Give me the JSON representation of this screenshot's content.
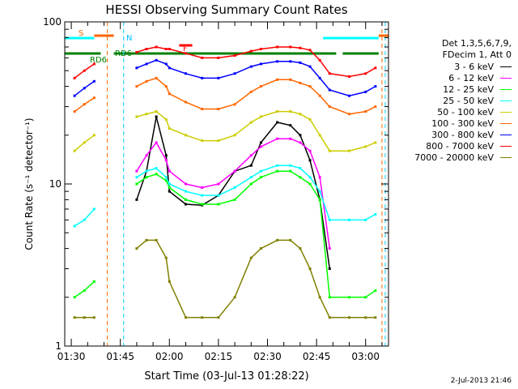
{
  "chart_data": {
    "type": "line",
    "title": "HESSI Observing Summary Count Rates",
    "xlabel": "Start Time (03-Jul-13 01:28:22)",
    "ylabel": "Count Rate (s⁻¹ detector⁻¹)",
    "y_scale": "log",
    "ylim": [
      1,
      100
    ],
    "xlim": [
      "01:28",
      "03:07"
    ],
    "x_ticks": [
      "01:30",
      "01:45",
      "02:00",
      "02:15",
      "02:30",
      "02:45",
      "03:00"
    ],
    "y_ticks": [
      "1",
      "10",
      "100"
    ],
    "grid": false,
    "legend_placement": "right",
    "legend_header": [
      "Det 1,3,5,6,7,9,",
      "FDecim 1, Att 0"
    ],
    "series": [
      {
        "name": "3 - 6 keV",
        "color": "#000000",
        "x": [
          "01:37",
          "01:43",
          "01:50",
          "01:53",
          "01:56",
          "01:59",
          "02:00",
          "02:05",
          "02:10",
          "02:15",
          "02:20",
          "02:25",
          "02:28",
          "02:33",
          "02:37",
          "02:40",
          "02:43",
          "02:46",
          "02:49"
        ],
        "y": [
          null,
          null,
          8,
          12,
          26,
          15,
          9,
          7.5,
          7.4,
          8.5,
          12,
          13,
          18,
          24,
          23,
          20,
          14,
          8,
          3
        ]
      },
      {
        "name": "6 - 12 keV",
        "color": "#ff00ff",
        "x": [
          "01:37",
          "01:43",
          "01:50",
          "01:53",
          "01:56",
          "01:59",
          "02:00",
          "02:05",
          "02:10",
          "02:15",
          "02:20",
          "02:25",
          "02:28",
          "02:33",
          "02:37",
          "02:40",
          "02:43",
          "02:46",
          "02:49"
        ],
        "y": [
          null,
          null,
          12,
          15,
          18,
          14,
          12,
          10,
          9.5,
          10,
          12,
          15,
          17,
          19,
          19,
          18,
          16,
          11,
          4
        ]
      },
      {
        "name": "12 - 25 keV",
        "color": "#00ff00",
        "x": [
          "01:31",
          "01:34",
          "01:37",
          "01:43",
          "01:50",
          "01:53",
          "01:56",
          "01:59",
          "02:00",
          "02:05",
          "02:10",
          "02:15",
          "02:20",
          "02:25",
          "02:28",
          "02:33",
          "02:37",
          "02:40",
          "02:43",
          "02:46",
          "02:49",
          "02:55",
          "03:00",
          "03:03"
        ],
        "y": [
          2,
          2.2,
          2.5,
          null,
          10,
          11,
          11.5,
          10.5,
          9.5,
          8,
          7.5,
          7.5,
          8,
          10,
          11,
          12,
          12,
          11,
          10,
          8,
          2,
          2,
          2,
          2.2
        ]
      },
      {
        "name": "25 - 50 keV",
        "color": "#00ffff",
        "x": [
          "01:31",
          "01:34",
          "01:37",
          "01:43",
          "01:50",
          "01:53",
          "01:56",
          "01:59",
          "02:00",
          "02:05",
          "02:10",
          "02:15",
          "02:20",
          "02:25",
          "02:28",
          "02:33",
          "02:37",
          "02:40",
          "02:43",
          "02:46",
          "02:49",
          "02:55",
          "03:00",
          "03:03"
        ],
        "y": [
          5.5,
          6,
          7,
          null,
          11,
          12,
          12.5,
          11,
          10,
          9,
          8.5,
          8.5,
          9.5,
          11,
          12,
          13,
          13,
          12.5,
          11,
          9,
          6,
          6,
          6,
          6.5
        ]
      },
      {
        "name": "50 - 100 keV",
        "color": "#cccc00",
        "x": [
          "01:31",
          "01:34",
          "01:37",
          "01:43",
          "01:50",
          "01:53",
          "01:56",
          "01:59",
          "02:00",
          "02:05",
          "02:10",
          "02:15",
          "02:20",
          "02:25",
          "02:28",
          "02:33",
          "02:37",
          "02:40",
          "02:43",
          "02:46",
          "02:49",
          "02:55",
          "03:00",
          "03:03"
        ],
        "y": [
          16,
          18,
          20,
          null,
          26,
          27,
          28,
          25,
          22,
          20,
          18.5,
          18.5,
          20,
          24,
          26,
          28,
          28,
          27,
          25,
          20,
          16,
          16,
          17,
          18
        ]
      },
      {
        "name": "100 - 300 keV",
        "color": "#ff6600",
        "x": [
          "01:31",
          "01:34",
          "01:37",
          "01:43",
          "01:50",
          "01:53",
          "01:56",
          "01:59",
          "02:00",
          "02:05",
          "02:10",
          "02:15",
          "02:20",
          "02:25",
          "02:28",
          "02:33",
          "02:37",
          "02:40",
          "02:43",
          "02:46",
          "02:49",
          "02:55",
          "03:00",
          "03:03"
        ],
        "y": [
          28,
          31,
          34,
          null,
          40,
          43,
          45,
          40,
          36,
          32,
          29,
          29,
          31,
          37,
          40,
          44,
          44,
          42,
          40,
          35,
          30,
          27,
          28,
          30
        ]
      },
      {
        "name": "300 - 800 keV",
        "color": "#0000ff",
        "x": [
          "01:31",
          "01:34",
          "01:37",
          "01:43",
          "01:50",
          "01:53",
          "01:56",
          "01:59",
          "02:00",
          "02:05",
          "02:10",
          "02:15",
          "02:20",
          "02:25",
          "02:28",
          "02:33",
          "02:37",
          "02:40",
          "02:43",
          "02:46",
          "02:49",
          "02:55",
          "03:00",
          "03:03"
        ],
        "y": [
          35,
          39,
          43,
          null,
          52,
          55,
          58,
          55,
          52,
          48,
          45,
          45,
          48,
          53,
          55,
          57,
          57,
          56,
          53,
          45,
          38,
          35,
          37,
          40
        ]
      },
      {
        "name": "800 - 7000 keV",
        "color": "#ff0000",
        "x": [
          "01:31",
          "01:34",
          "01:37",
          "01:43",
          "01:50",
          "01:53",
          "01:56",
          "01:59",
          "02:00",
          "02:05",
          "02:10",
          "02:15",
          "02:20",
          "02:25",
          "02:28",
          "02:33",
          "02:37",
          "02:40",
          "02:43",
          "02:46",
          "02:49",
          "02:55",
          "03:00",
          "03:03"
        ],
        "y": [
          45,
          50,
          55,
          null,
          65,
          68,
          70,
          68,
          68,
          64,
          60,
          60,
          62,
          66,
          68,
          70,
          70,
          69,
          67,
          58,
          48,
          46,
          48,
          52
        ]
      },
      {
        "name": "7000 - 20000 keV",
        "color": "#808000",
        "x": [
          "01:31",
          "01:34",
          "01:37",
          "01:43",
          "01:50",
          "01:53",
          "01:56",
          "01:59",
          "02:00",
          "02:05",
          "02:10",
          "02:15",
          "02:20",
          "02:25",
          "02:28",
          "02:33",
          "02:37",
          "02:40",
          "02:43",
          "02:46",
          "02:49",
          "02:55",
          "03:00",
          "03:03"
        ],
        "y": [
          1.5,
          1.5,
          1.5,
          null,
          4,
          4.5,
          4.5,
          3.5,
          2.5,
          1.5,
          1.5,
          1.5,
          2,
          3.5,
          4,
          4.5,
          4.5,
          4,
          3,
          2,
          1.5,
          1.5,
          1.5,
          1.5
        ]
      }
    ],
    "annotations": [
      {
        "label": "S",
        "color": "#ff6600"
      },
      {
        "label": "N",
        "color": "#00bfff"
      },
      {
        "label": "RD6",
        "color": "#008000"
      },
      {
        "label": "RD6",
        "color": "#008000"
      },
      {
        "label": "F",
        "color": "#ff0000"
      }
    ],
    "flag_bars": [
      {
        "name": "SAA",
        "color": "#ff6600",
        "x": [
          [
            "01:37",
            "01:43"
          ],
          [
            "03:04",
            "03:07"
          ]
        ]
      },
      {
        "name": "Night",
        "color": "#00ffff",
        "x": [
          [
            "01:28",
            "01:37"
          ],
          [
            "02:47",
            "03:04"
          ]
        ]
      },
      {
        "name": "RD6",
        "color": "#008000",
        "x": [
          [
            "01:28",
            "01:39"
          ],
          [
            "01:43",
            "02:06"
          ],
          [
            "02:06",
            "02:24"
          ],
          [
            "02:24",
            "02:51"
          ],
          [
            "02:53",
            "03:04"
          ]
        ]
      },
      {
        "name": "Flare",
        "color": "#ff0000",
        "x": [
          [
            "02:03",
            "02:07"
          ]
        ]
      }
    ]
  },
  "legend_header": [
    "Det 1,3,5,6,7,9,",
    "FDecim 1, Att 0"
  ],
  "timestamp": "2-Jul-2013 21:46"
}
